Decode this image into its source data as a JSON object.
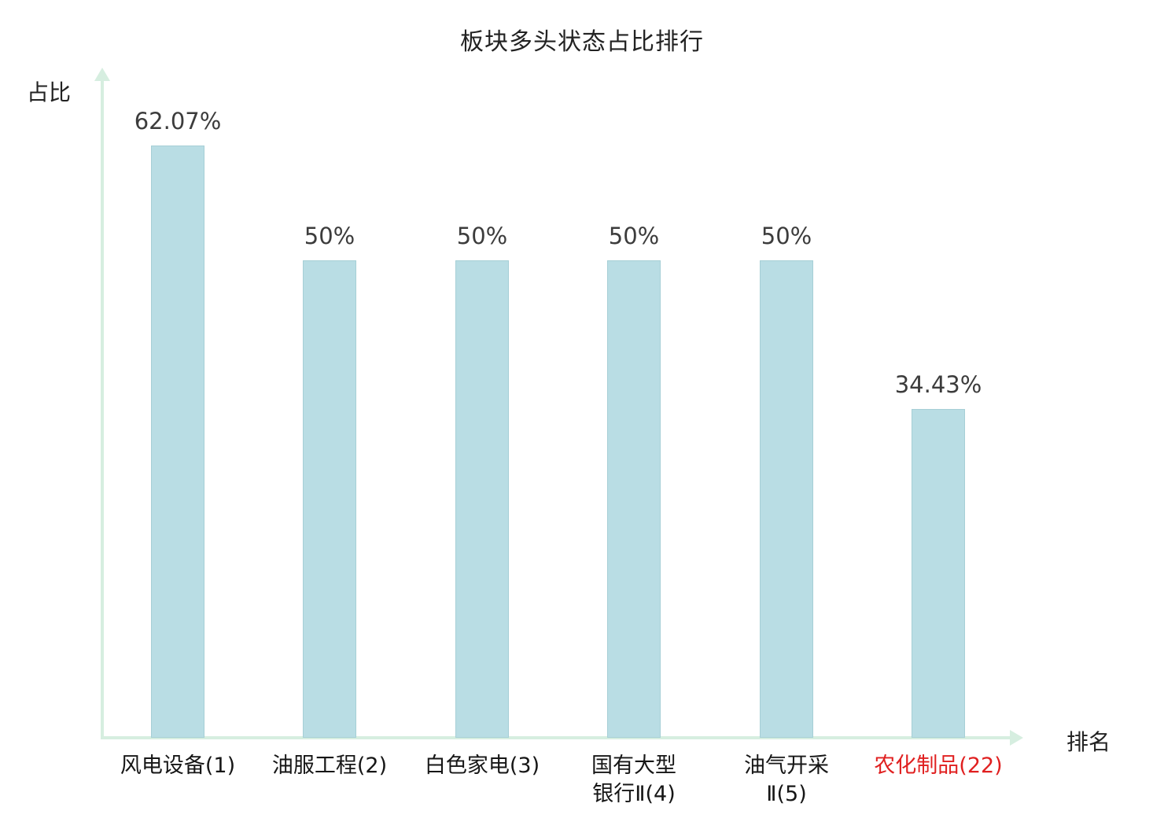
{
  "chart_data": {
    "type": "bar",
    "title": "板块多头状态占比排行",
    "xlabel": "排名",
    "ylabel": "占比",
    "categories": [
      "风电设备(1)",
      "油服工程(2)",
      "白色家电(3)",
      "国有大型银行Ⅱ(4)",
      "油气开采Ⅱ(5)",
      "农化制品(22)"
    ],
    "category_lines": [
      [
        "风电设备(1)"
      ],
      [
        "油服工程(2)"
      ],
      [
        "白色家电(3)"
      ],
      [
        "国有大型",
        "银行Ⅱ(4)"
      ],
      [
        "油气开采",
        "Ⅱ(5)"
      ],
      [
        "农化制品(22)"
      ]
    ],
    "values": [
      62.07,
      50,
      50,
      50,
      50,
      34.43
    ],
    "labels": [
      "62.07%",
      "50%",
      "50%",
      "50%",
      "50%",
      "34.43%"
    ],
    "highlight_index": 5,
    "highlight_color": "#e02020",
    "bar_color": "#b9dde4",
    "bar_border_color": "#a6cfd6",
    "axis_color": "#d6eee0",
    "ylim": [
      0,
      70
    ],
    "grid": false,
    "legend_position": "none"
  }
}
